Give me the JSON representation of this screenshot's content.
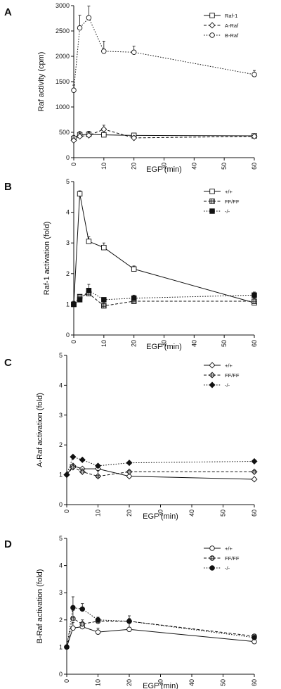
{
  "chart_data": [
    {
      "panel": "A",
      "type": "line",
      "xlabel": "EGF (min)",
      "ylabel": "Raf activity (cpm)",
      "xlim": [
        0,
        60
      ],
      "ylim": [
        0,
        3000
      ],
      "xticks": [
        0,
        10,
        20,
        30,
        40,
        50,
        60
      ],
      "yticks": [
        0,
        500,
        1000,
        1500,
        2000,
        2500,
        3000
      ],
      "legend_position": "top-right",
      "series": [
        {
          "name": "Raf-1",
          "marker": "square-open",
          "dash": "solid",
          "x": [
            0,
            2,
            5,
            10,
            20,
            60
          ],
          "y": [
            380,
            450,
            460,
            450,
            440,
            430
          ],
          "err": [
            60,
            70,
            60,
            50,
            40,
            30
          ]
        },
        {
          "name": "A-Raf",
          "marker": "diamond-open",
          "dash": "dashed",
          "x": [
            0,
            2,
            5,
            10,
            20,
            60
          ],
          "y": [
            340,
            420,
            440,
            560,
            390,
            420
          ],
          "err": [
            50,
            60,
            50,
            80,
            40,
            30
          ]
        },
        {
          "name": "B-Raf",
          "marker": "circle-open",
          "dash": "dotted",
          "x": [
            0,
            2,
            5,
            10,
            20,
            60
          ],
          "y": [
            1330,
            2560,
            2760,
            2100,
            2080,
            1640
          ],
          "err": [
            100,
            250,
            230,
            200,
            120,
            80
          ]
        }
      ]
    },
    {
      "panel": "B",
      "type": "line",
      "xlabel": "EGF (min)",
      "ylabel": "Raf-1 activation (fold)",
      "xlim": [
        0,
        60
      ],
      "ylim": [
        0,
        5
      ],
      "xticks": [
        0,
        10,
        20,
        30,
        40,
        50,
        60
      ],
      "yticks": [
        0,
        1,
        2,
        3,
        4,
        5
      ],
      "legend_position": "top-right",
      "series": [
        {
          "name": "+/+",
          "marker": "square-open",
          "dash": "solid",
          "x": [
            0,
            2,
            5,
            10,
            20,
            60
          ],
          "y": [
            1.0,
            4.6,
            3.05,
            2.85,
            2.15,
            1.05
          ],
          "err": [
            0.1,
            0.1,
            0.15,
            0.15,
            0.1,
            0.2
          ]
        },
        {
          "name": "FF/FF",
          "marker": "square-hatched",
          "dash": "dashed",
          "x": [
            0,
            2,
            5,
            10,
            20,
            60
          ],
          "y": [
            1.0,
            1.25,
            1.35,
            0.95,
            1.1,
            1.1
          ],
          "err": [
            0.05,
            0.05,
            0.1,
            0.1,
            0.1,
            0.1
          ]
        },
        {
          "name": "-/-",
          "marker": "square-filled",
          "dash": "dotted",
          "x": [
            0,
            2,
            5,
            10,
            20,
            60
          ],
          "y": [
            1.0,
            1.15,
            1.45,
            1.15,
            1.2,
            1.3
          ],
          "err": [
            0.05,
            0.05,
            0.2,
            0.05,
            0.1,
            0.1
          ]
        }
      ]
    },
    {
      "panel": "C",
      "type": "line",
      "xlabel": "EGF (min)",
      "ylabel": "A-Raf activation (fold)",
      "xlim": [
        0,
        60
      ],
      "ylim": [
        0,
        5
      ],
      "xticks": [
        0,
        10,
        20,
        30,
        40,
        50,
        60
      ],
      "yticks": [
        0,
        1,
        2,
        3,
        4,
        5
      ],
      "legend_position": "top-right",
      "series": [
        {
          "name": "+/+",
          "marker": "diamond-open",
          "dash": "solid",
          "x": [
            0,
            2,
            5,
            10,
            20,
            60
          ],
          "y": [
            1.0,
            1.3,
            1.2,
            1.2,
            0.95,
            0.85
          ],
          "err": [
            0.02,
            0.05,
            0.05,
            0.1,
            0.05,
            0.05
          ]
        },
        {
          "name": "FF/FF",
          "marker": "diamond-hatched",
          "dash": "dashed",
          "x": [
            0,
            2,
            5,
            10,
            20,
            60
          ],
          "y": [
            1.0,
            1.25,
            1.1,
            0.95,
            1.1,
            1.1
          ],
          "err": [
            0.02,
            0.1,
            0.1,
            0.2,
            0.05,
            0.05
          ]
        },
        {
          "name": "-/-",
          "marker": "diamond-filled",
          "dash": "dotted",
          "x": [
            0,
            2,
            5,
            10,
            20,
            60
          ],
          "y": [
            1.0,
            1.6,
            1.5,
            1.3,
            1.4,
            1.45
          ],
          "err": [
            0.02,
            0.05,
            0.05,
            0.05,
            0.05,
            0.05
          ]
        }
      ]
    },
    {
      "panel": "D",
      "type": "line",
      "xlabel": "EGF (min)",
      "ylabel": "B-Raf activation (fold)",
      "xlim": [
        0,
        60
      ],
      "ylim": [
        0,
        5
      ],
      "xticks": [
        0,
        10,
        20,
        30,
        40,
        50,
        60
      ],
      "yticks": [
        0,
        1,
        2,
        3,
        4,
        5
      ],
      "legend_position": "top-right",
      "series": [
        {
          "name": "+/+",
          "marker": "circle-open",
          "dash": "solid",
          "x": [
            0,
            2,
            5,
            10,
            20,
            60
          ],
          "y": [
            1.0,
            1.7,
            1.75,
            1.55,
            1.65,
            1.2
          ],
          "err": [
            0.02,
            0.2,
            0.15,
            0.15,
            0.3,
            0.2
          ]
        },
        {
          "name": "FF/FF",
          "marker": "circle-hatched",
          "dash": "dashed",
          "x": [
            0,
            2,
            5,
            10,
            20,
            60
          ],
          "y": [
            1.0,
            2.05,
            1.85,
            1.95,
            1.95,
            1.4
          ],
          "err": [
            0.02,
            0.3,
            0.15,
            0.1,
            0.2,
            0.05
          ]
        },
        {
          "name": "-/-",
          "marker": "circle-filled",
          "dash": "dotted",
          "x": [
            0,
            2,
            5,
            10,
            20,
            60
          ],
          "y": [
            1.0,
            2.45,
            2.4,
            2.0,
            1.95,
            1.35
          ],
          "err": [
            0.02,
            0.4,
            0.2,
            0.1,
            0.1,
            0.05
          ]
        }
      ]
    }
  ]
}
